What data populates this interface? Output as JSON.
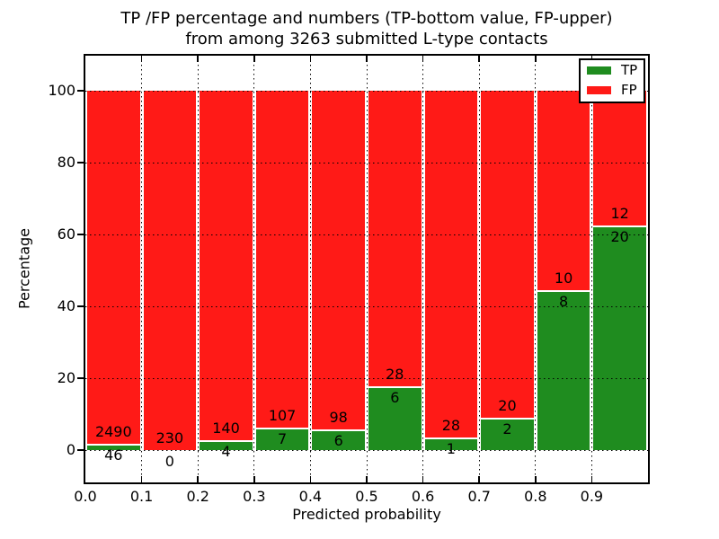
{
  "title": {
    "line1": "TP /FP percentage and numbers (TP-bottom value, FP-upper)",
    "line2": "from among 3263 submitted L-type contacts"
  },
  "axes": {
    "xlabel": "Predicted probability",
    "ylabel": "Percentage",
    "x_ticks": [
      "0.0",
      "0.1",
      "0.2",
      "0.3",
      "0.4",
      "0.5",
      "0.6",
      "0.7",
      "0.8",
      "0.9"
    ],
    "y_ticks": [
      0,
      20,
      40,
      60,
      80,
      100
    ]
  },
  "legend": [
    {
      "label": "TP",
      "color": "#1f8c1f",
      "swatch": "tp-swatch"
    },
    {
      "label": "FP",
      "color": "#ff1a17",
      "swatch": "fp-swatch"
    }
  ],
  "colors": {
    "tp": "#1f8c1f",
    "fp": "#ff1a17",
    "grid": "#000000",
    "background": "#ffffff"
  },
  "chart_data": {
    "type": "bar",
    "subtype": "stacked-percentage",
    "title": "TP /FP percentage and numbers (TP-bottom value, FP-upper) from among 3263 submitted L-type contacts",
    "xlabel": "Predicted probability",
    "ylabel": "Percentage",
    "xlim": [
      0.0,
      1.0
    ],
    "ylim": [
      -9,
      110
    ],
    "grid": true,
    "legend_position": "upper right",
    "total_contacts": 3263,
    "bin_width": 0.1,
    "categories": [
      "0.0",
      "0.1",
      "0.2",
      "0.3",
      "0.4",
      "0.5",
      "0.6",
      "0.7",
      "0.8",
      "0.9"
    ],
    "bins": [
      {
        "bin_start": 0.0,
        "bin_end": 0.1,
        "tp": 46,
        "fp": 2490,
        "tp_pct": 1.81
      },
      {
        "bin_start": 0.1,
        "bin_end": 0.2,
        "tp": 0,
        "fp": 230,
        "tp_pct": 0.0
      },
      {
        "bin_start": 0.2,
        "bin_end": 0.3,
        "tp": 4,
        "fp": 140,
        "tp_pct": 2.78
      },
      {
        "bin_start": 0.3,
        "bin_end": 0.4,
        "tp": 7,
        "fp": 107,
        "tp_pct": 6.14
      },
      {
        "bin_start": 0.4,
        "bin_end": 0.5,
        "tp": 6,
        "fp": 98,
        "tp_pct": 5.77
      },
      {
        "bin_start": 0.5,
        "bin_end": 0.6,
        "tp": 6,
        "fp": 28,
        "tp_pct": 17.65
      },
      {
        "bin_start": 0.6,
        "bin_end": 0.7,
        "tp": 1,
        "fp": 28,
        "tp_pct": 3.45
      },
      {
        "bin_start": 0.7,
        "bin_end": 0.8,
        "tp": 2,
        "fp": 20,
        "tp_pct": 9.09
      },
      {
        "bin_start": 0.8,
        "bin_end": 0.9,
        "tp": 8,
        "fp": 10,
        "tp_pct": 44.44
      },
      {
        "bin_start": 0.9,
        "bin_end": 1.0,
        "tp": 20,
        "fp": 12,
        "tp_pct": 62.5
      }
    ],
    "series": [
      {
        "name": "TP",
        "counts": [
          46,
          0,
          4,
          7,
          6,
          6,
          1,
          2,
          8,
          20
        ]
      },
      {
        "name": "FP",
        "counts": [
          2490,
          230,
          140,
          107,
          98,
          28,
          28,
          20,
          10,
          12
        ]
      }
    ]
  }
}
